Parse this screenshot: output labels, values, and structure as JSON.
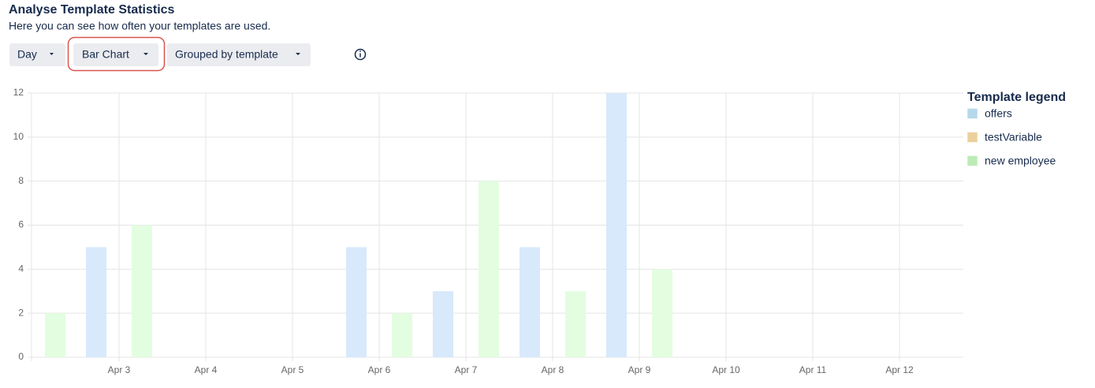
{
  "header": {
    "title": "Analyse Template Statistics",
    "subtitle": "Here you can see how often your templates are used."
  },
  "controls": [
    "Day",
    "Bar Chart",
    "Grouped by template"
  ],
  "chart_data": {
    "type": "bar",
    "legend_title": "Template legend",
    "legend_position": "right",
    "categories": [
      null,
      "Apr 3",
      "Apr 4",
      "Apr 5",
      "Apr 6",
      "Apr 7",
      "Apr 8",
      "Apr 9",
      "Apr 10",
      "Apr 11",
      "Apr 12"
    ],
    "series": [
      {
        "name": "offers",
        "color": "#d7e9fb",
        "values": [
          0,
          5,
          0,
          0,
          5,
          3,
          5,
          12,
          0,
          0,
          0
        ]
      },
      {
        "name": "testVariable",
        "color": "#ffe6cc",
        "values": [
          0,
          0,
          0,
          0,
          0,
          0,
          0,
          0,
          0,
          0,
          0
        ]
      },
      {
        "name": "new employee",
        "color": "#e3fde0",
        "values": [
          2,
          6,
          0,
          0,
          2,
          8,
          3,
          4,
          0,
          0,
          0
        ]
      }
    ],
    "ylim": [
      0,
      12
    ],
    "yticks": [
      0,
      2,
      4,
      6,
      8,
      10,
      12
    ],
    "grid": true
  }
}
